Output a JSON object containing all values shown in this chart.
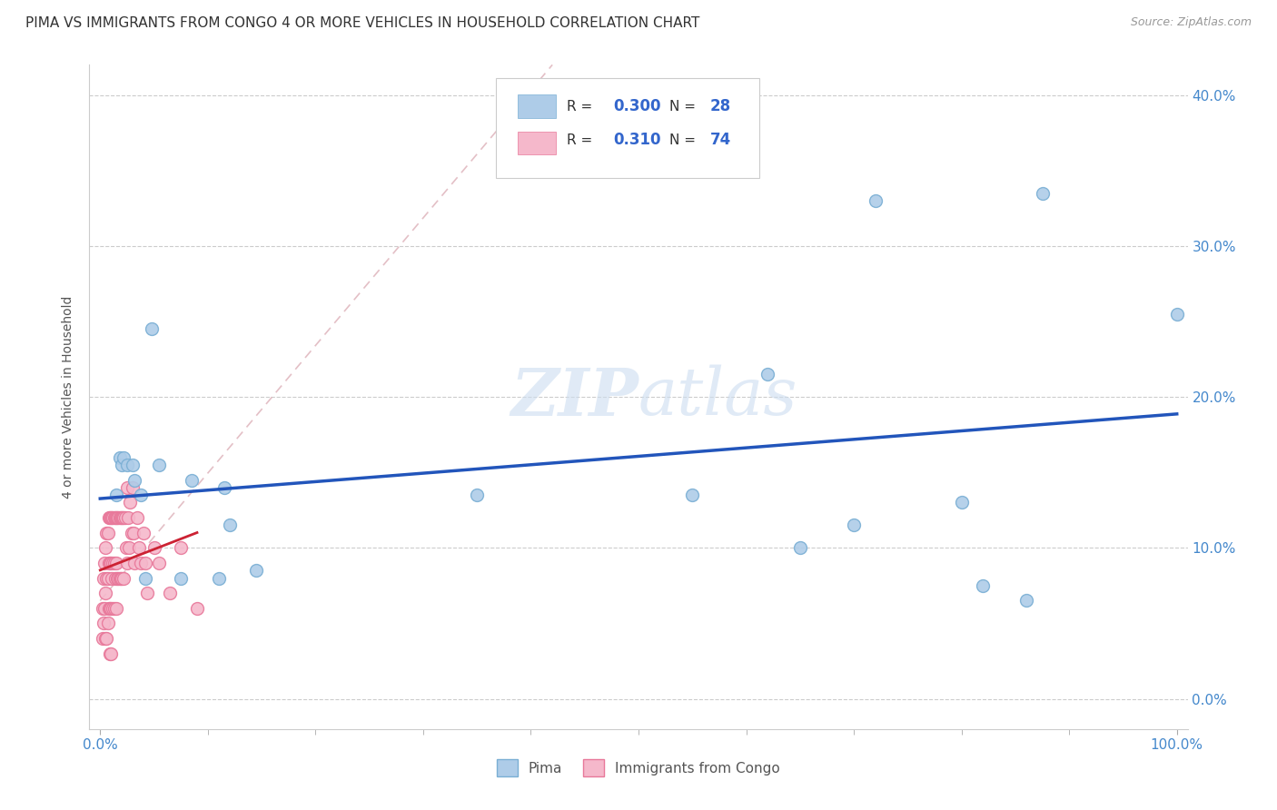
{
  "title": "PIMA VS IMMIGRANTS FROM CONGO 4 OR MORE VEHICLES IN HOUSEHOLD CORRELATION CHART",
  "source": "Source: ZipAtlas.com",
  "ylabel": "4 or more Vehicles in Household",
  "xlabel_pima": "Pima",
  "xlabel_congo": "Immigrants from Congo",
  "xlim": [
    -0.01,
    1.01
  ],
  "ylim": [
    -0.02,
    0.42
  ],
  "xticks": [
    0.0,
    1.0
  ],
  "yticks": [
    0.0,
    0.1,
    0.2,
    0.3,
    0.4
  ],
  "pima_color": "#aecce8",
  "pima_edge_color": "#7aafd4",
  "congo_color": "#f5b8cb",
  "congo_edge_color": "#e8789a",
  "regression_pima_color": "#2255bb",
  "regression_congo_color": "#cc2233",
  "diagonal_color": "#ddb0b8",
  "pima_x": [
    0.015,
    0.018,
    0.02,
    0.022,
    0.025,
    0.03,
    0.032,
    0.038,
    0.042,
    0.048,
    0.055,
    0.075,
    0.085,
    0.11,
    0.115,
    0.12,
    0.145,
    0.35,
    0.55,
    0.62,
    0.65,
    0.7,
    0.72,
    0.8,
    0.82,
    0.86,
    0.875,
    1.0
  ],
  "pima_y": [
    0.135,
    0.16,
    0.155,
    0.16,
    0.155,
    0.155,
    0.145,
    0.135,
    0.08,
    0.245,
    0.155,
    0.08,
    0.145,
    0.08,
    0.14,
    0.115,
    0.085,
    0.135,
    0.135,
    0.215,
    0.1,
    0.115,
    0.33,
    0.13,
    0.075,
    0.065,
    0.335,
    0.255
  ],
  "congo_x": [
    0.002,
    0.002,
    0.003,
    0.003,
    0.004,
    0.004,
    0.005,
    0.005,
    0.005,
    0.006,
    0.006,
    0.006,
    0.007,
    0.007,
    0.007,
    0.008,
    0.008,
    0.008,
    0.009,
    0.009,
    0.009,
    0.009,
    0.01,
    0.01,
    0.01,
    0.01,
    0.011,
    0.011,
    0.012,
    0.012,
    0.012,
    0.013,
    0.013,
    0.013,
    0.014,
    0.014,
    0.015,
    0.015,
    0.015,
    0.016,
    0.016,
    0.017,
    0.017,
    0.018,
    0.018,
    0.019,
    0.019,
    0.02,
    0.02,
    0.021,
    0.022,
    0.022,
    0.023,
    0.024,
    0.025,
    0.025,
    0.026,
    0.027,
    0.028,
    0.029,
    0.03,
    0.031,
    0.032,
    0.034,
    0.036,
    0.038,
    0.04,
    0.042,
    0.044,
    0.05,
    0.055,
    0.065,
    0.075,
    0.09
  ],
  "congo_y": [
    0.06,
    0.04,
    0.08,
    0.05,
    0.09,
    0.06,
    0.1,
    0.07,
    0.04,
    0.11,
    0.08,
    0.04,
    0.11,
    0.08,
    0.05,
    0.12,
    0.09,
    0.06,
    0.12,
    0.09,
    0.06,
    0.03,
    0.12,
    0.09,
    0.06,
    0.03,
    0.12,
    0.08,
    0.12,
    0.09,
    0.06,
    0.12,
    0.09,
    0.06,
    0.12,
    0.08,
    0.12,
    0.09,
    0.06,
    0.12,
    0.08,
    0.12,
    0.08,
    0.12,
    0.08,
    0.12,
    0.08,
    0.12,
    0.08,
    0.12,
    0.12,
    0.08,
    0.12,
    0.1,
    0.14,
    0.09,
    0.12,
    0.1,
    0.13,
    0.11,
    0.14,
    0.11,
    0.09,
    0.12,
    0.1,
    0.09,
    0.11,
    0.09,
    0.07,
    0.1,
    0.09,
    0.07,
    0.1,
    0.06
  ],
  "marker_size": 100,
  "title_fontsize": 11,
  "label_fontsize": 10,
  "tick_fontsize": 11
}
